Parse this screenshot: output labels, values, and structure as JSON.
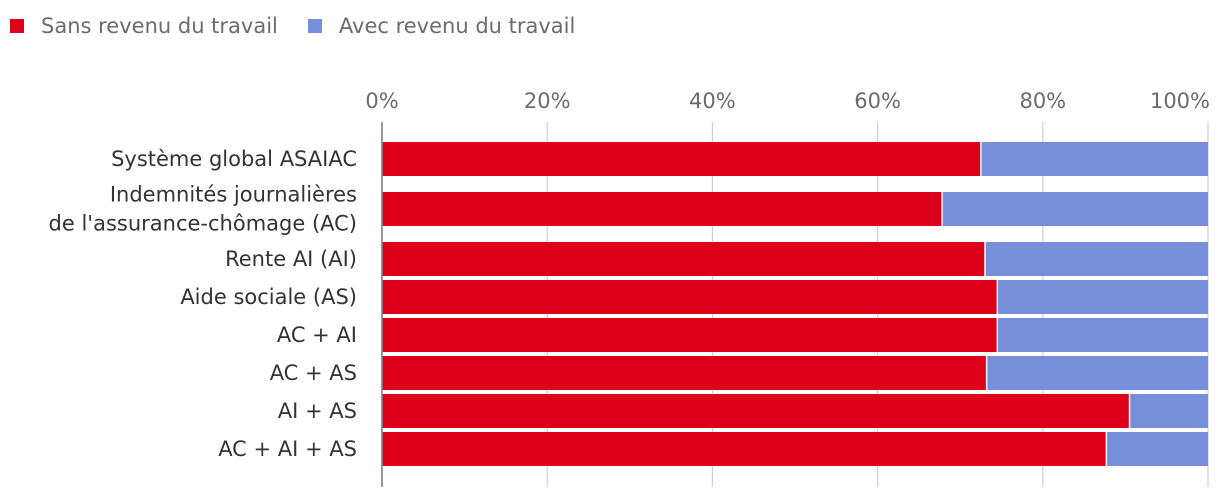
{
  "chart_data": {
    "type": "bar",
    "orientation": "horizontal",
    "stacked": true,
    "title": "",
    "xlabel": "",
    "ylabel": "",
    "xlim": [
      0,
      100
    ],
    "x_ticks": [
      "0%",
      "20%",
      "40%",
      "60%",
      "80%",
      "100%"
    ],
    "x_tick_values": [
      0,
      20,
      40,
      60,
      80,
      100
    ],
    "legend_position": "top-left",
    "grid": true,
    "categories": [
      [
        "Système global ASAIAC"
      ],
      [
        "Indemnités journalières",
        "de l'assurance-chômage (AC)"
      ],
      [
        "Rente AI (AI)"
      ],
      [
        "Aide sociale (AS)"
      ],
      [
        "AC + AI"
      ],
      [
        "AC + AS"
      ],
      [
        "AI + AS"
      ],
      [
        "AC + AI + AS"
      ]
    ],
    "series": [
      {
        "name": "Sans revenu du travail",
        "color": "#dc0018",
        "values": [
          72.5,
          67.8,
          73.0,
          74.5,
          74.5,
          73.2,
          90.5,
          87.7
        ]
      },
      {
        "name": "Avec revenu du travail",
        "color": "#778fda",
        "values": [
          27.5,
          32.2,
          27.0,
          25.5,
          25.5,
          26.8,
          9.5,
          12.3
        ]
      }
    ]
  }
}
